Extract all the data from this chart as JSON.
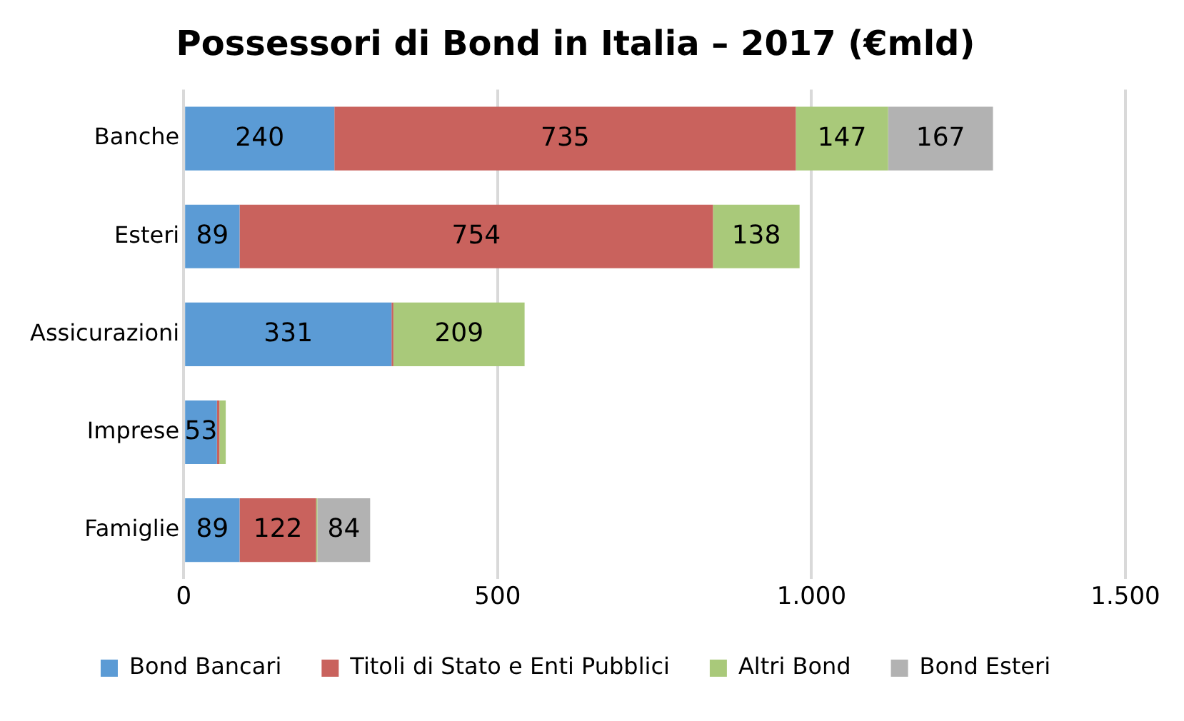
{
  "chart_data": {
    "type": "bar",
    "orientation": "horizontal",
    "stacked": true,
    "title": "Possessori di Bond in Italia – 2017 (€mld)",
    "categories": [
      "Banche",
      "Esteri",
      "Assicurazioni",
      "Imprese",
      "Famiglie"
    ],
    "series": [
      {
        "name": "Bond Bancari",
        "color": "#5b9bd5",
        "values": [
          240,
          89,
          331,
          53,
          89
        ],
        "value_labels": [
          "240",
          "89",
          "331",
          "53",
          "89"
        ]
      },
      {
        "name": "Titoli di Stato e Enti Pubblici",
        "color": "#c9625d",
        "values": [
          735,
          754,
          3,
          4,
          122
        ],
        "value_labels": [
          "735",
          "754",
          null,
          null,
          "122"
        ]
      },
      {
        "name": "Altri Bond",
        "color": "#a9c97a",
        "values": [
          147,
          138,
          209,
          10,
          2
        ],
        "value_labels": [
          "147",
          "138",
          "209",
          null,
          null
        ]
      },
      {
        "name": "Bond Esteri",
        "color": "#b2b2b2",
        "values": [
          167,
          null,
          null,
          null,
          84
        ],
        "value_labels": [
          "167",
          null,
          null,
          null,
          "84"
        ]
      }
    ],
    "xlim": [
      0,
      1500
    ],
    "xticks": [
      0,
      500,
      {
        "value": 1000,
        "label": "1.000"
      },
      {
        "value": 1500,
        "label": "1.500"
      }
    ],
    "grid": "x",
    "legend": "bottom"
  }
}
